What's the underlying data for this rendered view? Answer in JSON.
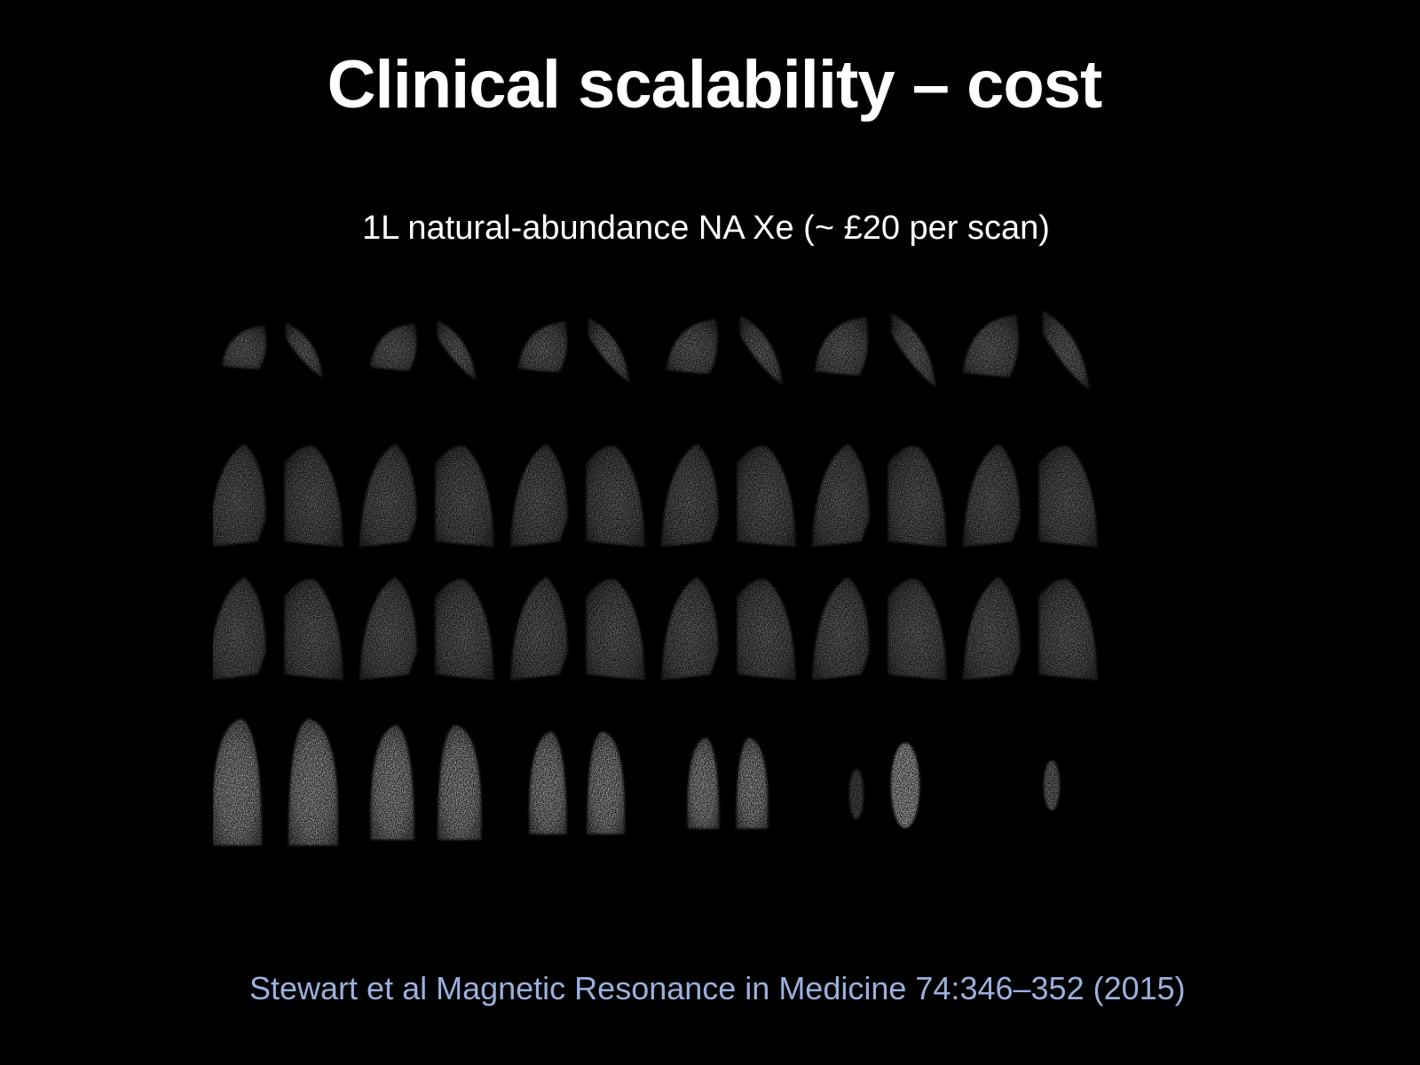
{
  "slide": {
    "title": "Clinical scalability – cost",
    "subtitle": "1L natural-abundance NA Xe (~ £20 per scan)",
    "citation": "Stewart et al Magnetic Resonance in Medicine 74:346–352 (2015)",
    "colors": {
      "background": "#000000",
      "title": "#ffffff",
      "citation": "#9bb1dd"
    }
  },
  "image_grid": {
    "description_kind": "lung-mri-slices",
    "rows": 4,
    "columns": 6,
    "row_intensity": [
      0.75,
      0.7,
      0.72,
      0.9
    ]
  }
}
